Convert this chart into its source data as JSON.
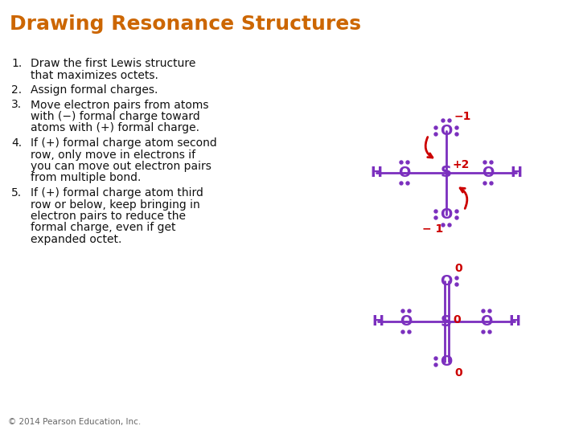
{
  "title": "Drawing Resonance Structures",
  "title_color": "#CC6600",
  "title_fontsize": 18,
  "background_color": "#FFFFFF",
  "text_color": "#111111",
  "molecule_color": "#7B2FBE",
  "charge_color": "#CC0000",
  "arrow_color": "#CC0000",
  "footer": "© 2014 Pearson Education, Inc.",
  "body_items": [
    {
      "num": "1.",
      "text": "Draw the first Lewis structure\nthat maximizes octets."
    },
    {
      "num": "2.",
      "text": "Assign formal charges."
    },
    {
      "num": "3.",
      "text": "Move electron pairs from atoms\nwith (−) formal charge toward\natoms with (+) formal charge."
    },
    {
      "num": "4.",
      "text": "If (+) formal charge atom second\nrow, only move in electrons if\nyou can move out electron pairs\nfrom multiple bond."
    },
    {
      "num": "5.",
      "text": "If (+) formal charge atom third\nrow or below, keep bringing in\nelectron pairs to reduce the\nformal charge, even if get\nexpanded octet."
    }
  ]
}
